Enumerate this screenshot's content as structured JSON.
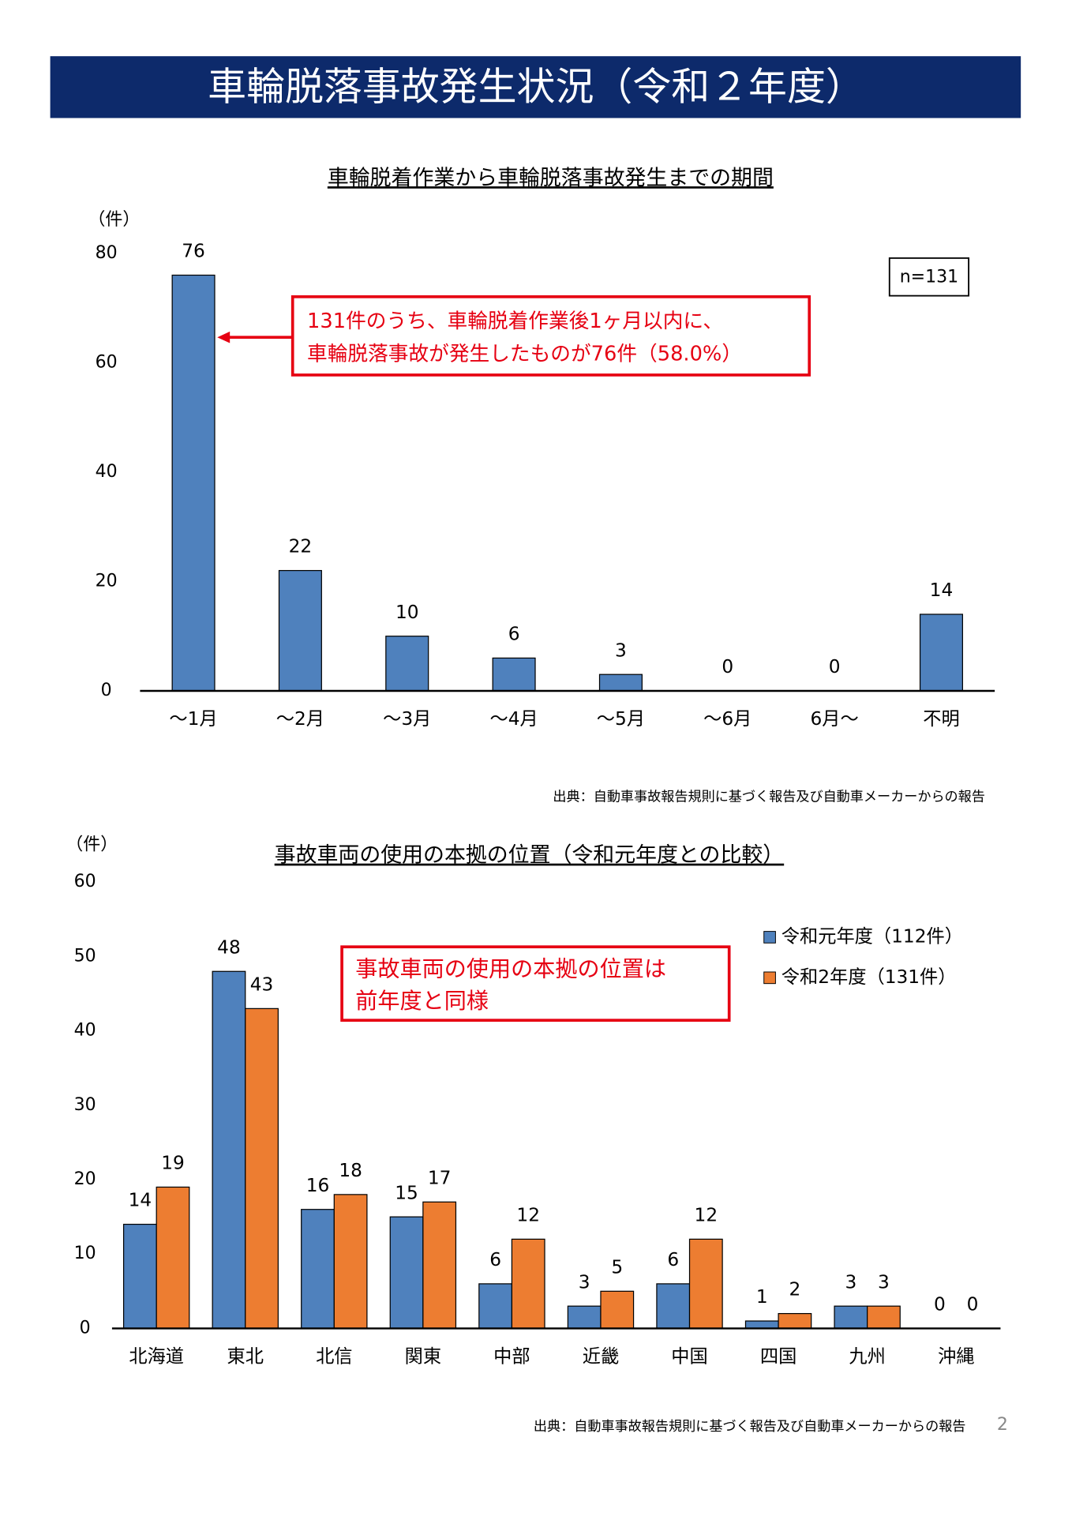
{
  "title": "車輪脱落事故発生状況（令和２年度）",
  "page_number": "2",
  "chart_data": [
    {
      "type": "bar",
      "title": "車輪脱着作業から車輪脱落事故発生までの期間",
      "y_unit_label": "（件）",
      "categories": [
        "～1月",
        "～2月",
        "～3月",
        "～4月",
        "～5月",
        "～6月",
        "6月～",
        "不明"
      ],
      "values": [
        76,
        22,
        10,
        6,
        3,
        0,
        0,
        14
      ],
      "color": "#4f81bd",
      "ylim": [
        0,
        80
      ],
      "yticks": [
        0,
        20,
        40,
        60,
        80
      ],
      "grid": false,
      "annotations": [
        "n=131"
      ],
      "callout": [
        "131件のうち、車輪脱着作業後1ヶ月以内に、",
        "車輪脱落事故が発生したものが76件（58.0%）"
      ],
      "source": "出典：自動車事故報告規則に基づく報告及び自動車メーカーからの報告"
    },
    {
      "type": "bar",
      "title": "事故車両の使用の本拠の位置（令和元年度との比較）",
      "y_unit_label": "（件）",
      "categories": [
        "北海道",
        "東北",
        "北信",
        "関東",
        "中部",
        "近畿",
        "中国",
        "四国",
        "九州",
        "沖縄"
      ],
      "series": [
        {
          "name": "令和元年度（112件）",
          "color": "#4f81bd",
          "values": [
            14,
            48,
            16,
            15,
            6,
            3,
            6,
            1,
            3,
            0
          ]
        },
        {
          "name": "令和2年度（131件）",
          "color": "#ed7d31",
          "values": [
            19,
            43,
            18,
            17,
            12,
            5,
            12,
            2,
            3,
            0
          ]
        }
      ],
      "ylim": [
        0,
        60
      ],
      "yticks": [
        0,
        10,
        20,
        30,
        40,
        50,
        60
      ],
      "grid": false,
      "legend": "upper right",
      "callout": [
        "事故車両の使用の本拠の位置は",
        "前年度と同様"
      ],
      "source": "出典：自動車事故報告規則に基づく報告及び自動車メーカーからの報告"
    }
  ]
}
